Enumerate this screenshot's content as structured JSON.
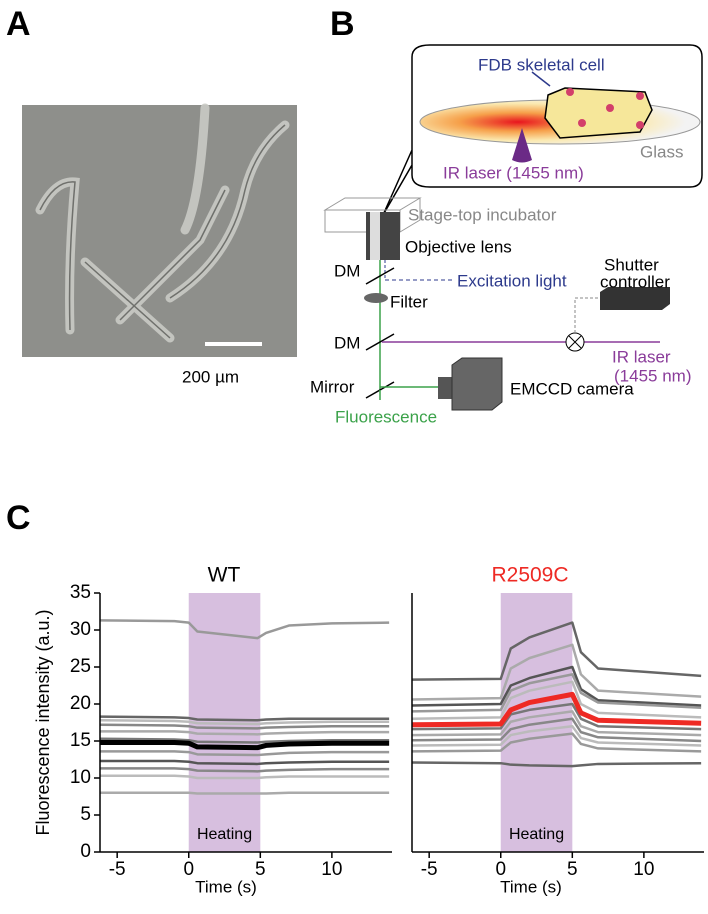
{
  "panels": {
    "a": "A",
    "b": "B",
    "c": "C"
  },
  "panel_a": {
    "scale_label": "200 µm"
  },
  "panel_b": {
    "cell": "FDB skeletal cell",
    "glass": "Glass",
    "laser_top": "IR laser (1455 nm)",
    "incubator": "Stage-top incubator",
    "objective": "Objective lens",
    "dm1": "DM",
    "excitation": "Excitation light",
    "shutter1": "Shutter",
    "shutter2": "controller",
    "filter": "Filter",
    "dm2": "DM",
    "laser1": "IR laser",
    "laser2": "(1455 nm)",
    "mirror": "Mirror",
    "camera": "EMCCD camera",
    "fluorescence": "Fluorescence"
  },
  "chart_data": [
    {
      "type": "line",
      "title": "WT",
      "title_color": "#000000",
      "ylabel": "Fluorescence intensity (a.u.)",
      "xlabel": "Time (s)",
      "annotation": "Heating",
      "shade_x": [
        0,
        5
      ],
      "shade_color": "#d7bfdf",
      "x": [
        -6.2,
        -1,
        0,
        0.6,
        4.8,
        5.4,
        7,
        10,
        14
      ],
      "xlim": [
        -6.2,
        14.2
      ],
      "ylim": [
        0,
        35
      ],
      "xticks": [
        -5,
        0,
        5,
        10
      ],
      "yticks": [
        0,
        5,
        10,
        15,
        20,
        25,
        30,
        35
      ],
      "series": [
        {
          "color": "#999999",
          "width": 2.5,
          "values": [
            31.3,
            31.2,
            31.0,
            29.8,
            28.9,
            29.6,
            30.6,
            30.9,
            31.0
          ]
        },
        {
          "color": "#666666",
          "width": 2.5,
          "values": [
            18.3,
            18.2,
            18.1,
            17.9,
            17.8,
            17.9,
            18.0,
            18.0,
            18.0
          ]
        },
        {
          "color": "#bbbbbb",
          "width": 2.5,
          "values": [
            17.8,
            17.7,
            17.6,
            17.4,
            17.3,
            17.4,
            17.5,
            17.6,
            17.6
          ]
        },
        {
          "color": "#888888",
          "width": 2.5,
          "values": [
            17.2,
            17.1,
            17.0,
            16.8,
            16.7,
            16.8,
            16.9,
            17.0,
            17.0
          ]
        },
        {
          "color": "#aaaaaa",
          "width": 2.5,
          "values": [
            16.3,
            16.3,
            16.2,
            16.0,
            15.9,
            16.0,
            16.1,
            16.2,
            16.2
          ]
        },
        {
          "color": "#777777",
          "width": 2.5,
          "values": [
            15.3,
            15.2,
            15.1,
            14.9,
            14.8,
            14.9,
            15.0,
            15.1,
            15.1
          ]
        },
        {
          "color": "#000000",
          "width": 5,
          "values": [
            14.8,
            14.8,
            14.7,
            14.2,
            14.1,
            14.4,
            14.6,
            14.7,
            14.7
          ]
        },
        {
          "color": "#999999",
          "width": 2.5,
          "values": [
            13.6,
            13.6,
            13.5,
            13.2,
            13.1,
            13.2,
            13.4,
            13.5,
            13.5
          ]
        },
        {
          "color": "#555555",
          "width": 2.5,
          "values": [
            12.3,
            12.3,
            12.2,
            12.0,
            11.9,
            12.0,
            12.1,
            12.2,
            12.2
          ]
        },
        {
          "color": "#888888",
          "width": 2.5,
          "values": [
            11.3,
            11.3,
            11.2,
            11.0,
            10.9,
            11.0,
            11.1,
            11.2,
            11.2
          ]
        },
        {
          "color": "#bbbbbb",
          "width": 2.5,
          "values": [
            10.3,
            10.3,
            10.2,
            10.0,
            10.0,
            10.1,
            10.2,
            10.2,
            10.2
          ]
        },
        {
          "color": "#aaaaaa",
          "width": 2.5,
          "values": [
            8.0,
            8.0,
            8.0,
            7.9,
            7.9,
            7.9,
            8.0,
            8.0,
            8.0
          ]
        }
      ]
    },
    {
      "type": "line",
      "title": "R2509C",
      "title_color": "#ee2a24",
      "xlabel": "Time (s)",
      "annotation": "Heating",
      "shade_x": [
        0,
        5
      ],
      "shade_color": "#d7bfdf",
      "x": [
        -6.2,
        0,
        0.7,
        2,
        5,
        5.6,
        6.8,
        14
      ],
      "xlim": [
        -6.2,
        14.2
      ],
      "ylim": [
        0,
        35
      ],
      "xticks": [
        -5,
        0,
        5,
        10
      ],
      "series": [
        {
          "color": "#666666",
          "width": 2.5,
          "values": [
            23.3,
            23.4,
            27.5,
            29.0,
            31.0,
            27.0,
            24.8,
            23.8
          ]
        },
        {
          "color": "#aaaaaa",
          "width": 2.5,
          "values": [
            20.6,
            20.8,
            24.8,
            26.2,
            28.0,
            24.0,
            21.8,
            21.0
          ]
        },
        {
          "color": "#555555",
          "width": 2.5,
          "values": [
            19.8,
            20.0,
            22.5,
            23.5,
            25.0,
            22.0,
            20.5,
            19.8
          ]
        },
        {
          "color": "#999999",
          "width": 2.5,
          "values": [
            19.0,
            19.2,
            21.8,
            22.8,
            24.0,
            21.5,
            20.2,
            19.5
          ]
        },
        {
          "color": "#bbbbbb",
          "width": 2.5,
          "values": [
            18.0,
            18.2,
            20.8,
            21.8,
            23.0,
            20.0,
            18.8,
            18.2
          ]
        },
        {
          "color": "#777777",
          "width": 2.5,
          "values": [
            16.6,
            16.7,
            18.6,
            19.2,
            20.0,
            18.0,
            17.0,
            16.6
          ]
        },
        {
          "color": "#aaaaaa",
          "width": 2.5,
          "values": [
            15.8,
            15.9,
            17.6,
            18.2,
            19.0,
            17.0,
            16.2,
            15.8
          ]
        },
        {
          "color": "#888888",
          "width": 2.5,
          "values": [
            15.1,
            15.2,
            16.6,
            17.2,
            18.0,
            16.2,
            15.5,
            15.0
          ]
        },
        {
          "color": "#bbbbbb",
          "width": 2.5,
          "values": [
            14.4,
            14.5,
            15.8,
            16.3,
            17.0,
            15.4,
            14.8,
            14.4
          ]
        },
        {
          "color": "#999999",
          "width": 2.5,
          "values": [
            13.6,
            13.7,
            14.8,
            15.3,
            16.0,
            14.6,
            14.0,
            13.6
          ]
        },
        {
          "color": "#ee2a24",
          "width": 5,
          "values": [
            17.2,
            17.3,
            19.2,
            20.2,
            21.3,
            18.8,
            17.8,
            17.4
          ]
        },
        {
          "color": "#666666",
          "width": 2.5,
          "values": [
            12.1,
            12.0,
            11.8,
            11.7,
            11.6,
            11.7,
            11.9,
            12.0
          ]
        }
      ]
    }
  ]
}
